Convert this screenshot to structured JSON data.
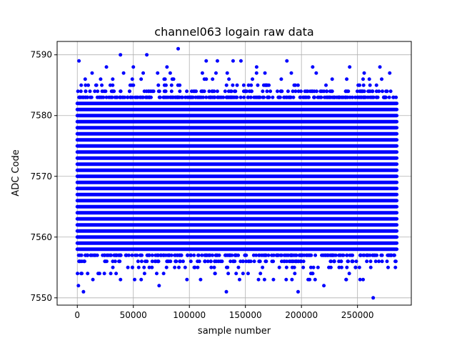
{
  "chart_data": {
    "type": "scatter",
    "title": "channel063 logain raw data",
    "xlabel": "sample number",
    "ylabel": "ADC Code",
    "xlim": [
      -18000,
      298000
    ],
    "ylim": [
      7548.8,
      7592.2
    ],
    "x_ticks": [
      0,
      50000,
      100000,
      150000,
      200000,
      250000
    ],
    "x_tick_labels": [
      "0",
      "50000",
      "100000",
      "150000",
      "200000",
      "250000"
    ],
    "y_ticks": [
      7550,
      7560,
      7570,
      7580,
      7590
    ],
    "y_tick_labels": [
      "7550",
      "7560",
      "7570",
      "7580",
      "7590"
    ],
    "grid": true,
    "marker_color": "#0000ff",
    "x_range": [
      0,
      285000
    ],
    "dense_band": [
      7555,
      7585
    ],
    "outliers": [
      {
        "x": 1500,
        "y": 7589
      },
      {
        "x": 5500,
        "y": 7551
      },
      {
        "x": 38500,
        "y": 7590
      },
      {
        "x": 62000,
        "y": 7590
      },
      {
        "x": 73000,
        "y": 7552
      },
      {
        "x": 90000,
        "y": 7591
      },
      {
        "x": 133000,
        "y": 7551
      },
      {
        "x": 187000,
        "y": 7589
      },
      {
        "x": 197000,
        "y": 7551
      },
      {
        "x": 264000,
        "y": 7550
      },
      {
        "x": 243000,
        "y": 7588
      },
      {
        "x": 270000,
        "y": 7588
      },
      {
        "x": 1000,
        "y": 7552
      },
      {
        "x": 220000,
        "y": 7552
      },
      {
        "x": 110000,
        "y": 7553
      },
      {
        "x": 125000,
        "y": 7589
      },
      {
        "x": 139000,
        "y": 7589
      },
      {
        "x": 146000,
        "y": 7589
      },
      {
        "x": 160000,
        "y": 7588
      },
      {
        "x": 210000,
        "y": 7588
      },
      {
        "x": 26000,
        "y": 7588
      },
      {
        "x": 115000,
        "y": 7589
      },
      {
        "x": 50000,
        "y": 7588
      },
      {
        "x": 80000,
        "y": 7588
      },
      {
        "x": 255000,
        "y": 7553
      },
      {
        "x": 175000,
        "y": 7553
      },
      {
        "x": 57000,
        "y": 7553
      },
      {
        "x": 77000,
        "y": 7554
      },
      {
        "x": 123000,
        "y": 7554
      },
      {
        "x": 167000,
        "y": 7553
      }
    ]
  }
}
